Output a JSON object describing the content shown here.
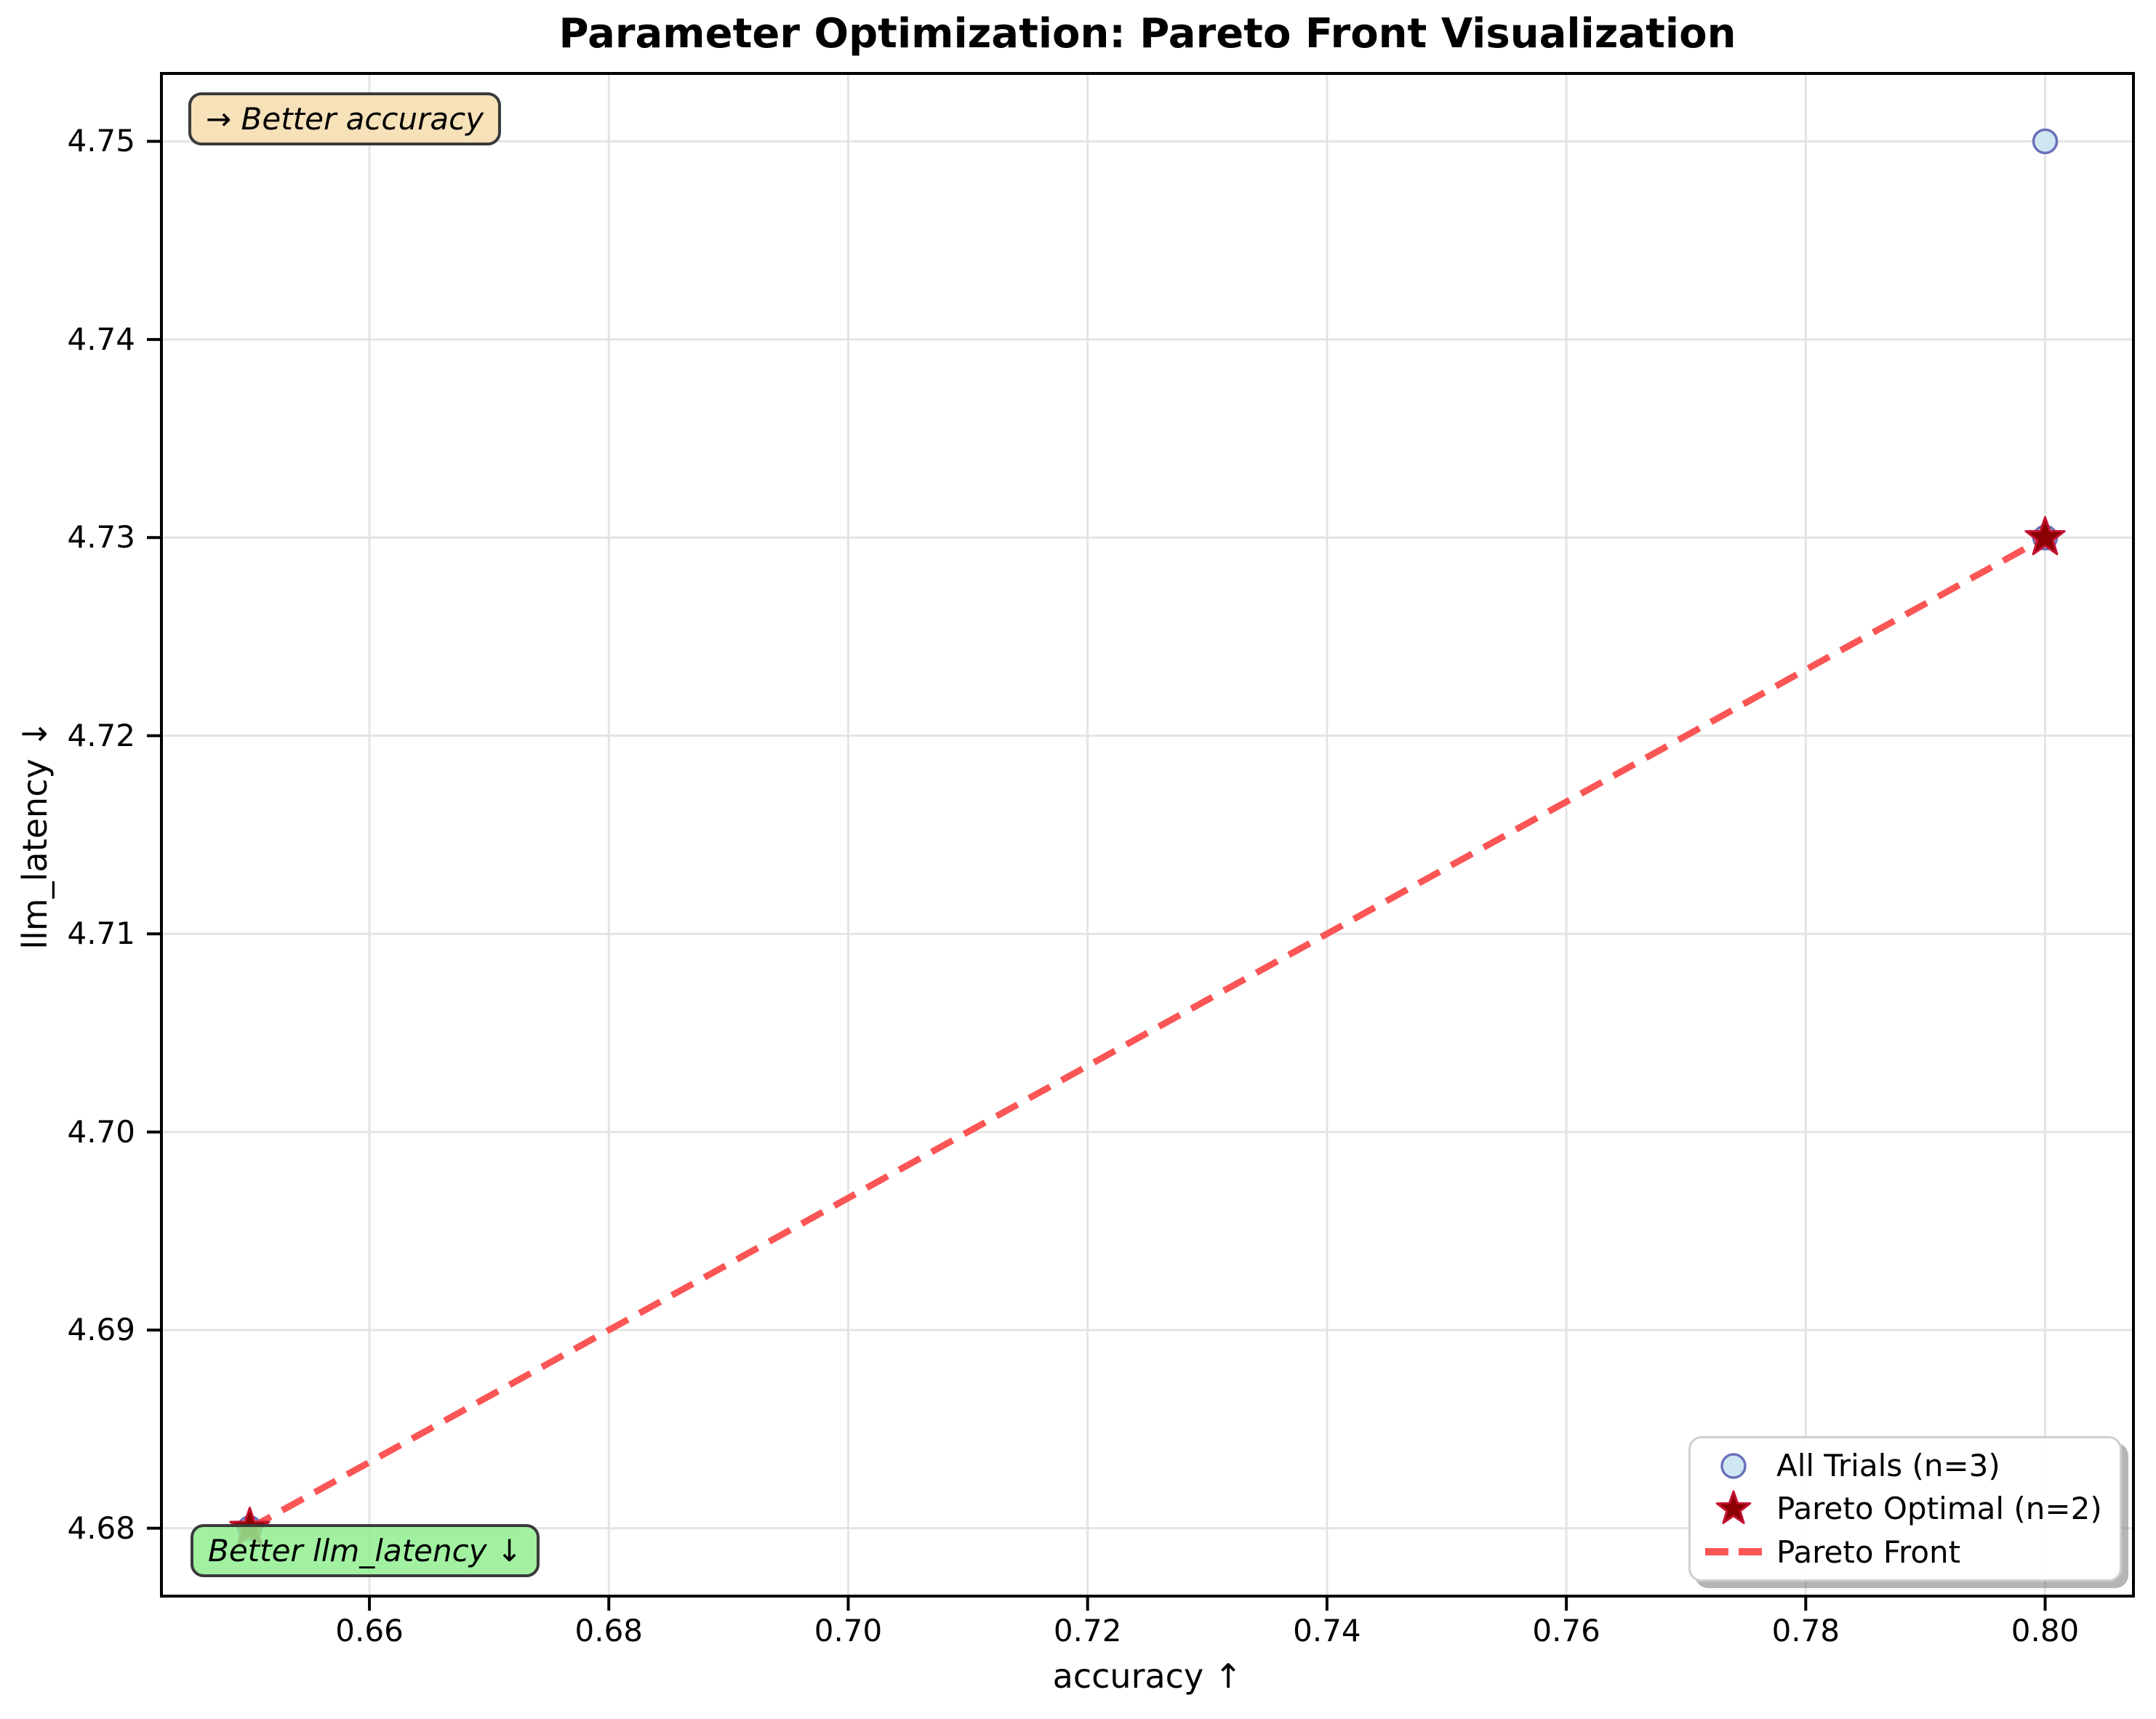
{
  "title": "Parameter Optimization: Pareto Front Visualization",
  "axes": {
    "xlabel": "accuracy ↑",
    "ylabel": "llm_latency ↓"
  },
  "annotations": {
    "better_accuracy": "→ Better accuracy",
    "better_latency": "Better llm_latency ↓"
  },
  "legend": {
    "position": "lower right"
  },
  "colors": {
    "trial_fill": "#cee7f2",
    "trial_edge": "#6a70ba",
    "pareto_fill": "#8b0000",
    "pareto_edge": "#c41230",
    "front_line": "#fb5555",
    "grid": "#e4e4e4",
    "spine": "#000000",
    "annotation_accuracy_bg": "rgba(245,222,179,0.92)",
    "annotation_latency_bg": "rgba(144,238,144,0.85)",
    "legend_bg": "rgba(255,255,255,0.95)"
  },
  "chart_data": {
    "type": "scatter",
    "title": "Parameter Optimization: Pareto Front Visualization",
    "xlabel": "accuracy ↑",
    "ylabel": "llm_latency ↓",
    "xlim": [
      0.6425,
      0.8075
    ],
    "ylim": [
      4.6765,
      4.7535
    ],
    "xticks": [
      0.66,
      0.68,
      0.7,
      0.72,
      0.74,
      0.76,
      0.78,
      0.8
    ],
    "yticks": [
      4.68,
      4.69,
      4.7,
      4.71,
      4.72,
      4.73,
      4.74,
      4.75
    ],
    "grid": true,
    "legend_position": "lower right",
    "series": [
      {
        "name": "All Trials (n=3)",
        "type": "scatter",
        "marker": "circle",
        "points": [
          [
            0.65,
            4.68
          ],
          [
            0.8,
            4.73
          ],
          [
            0.8,
            4.75
          ]
        ]
      },
      {
        "name": "Pareto Optimal (n=2)",
        "type": "scatter",
        "marker": "star",
        "points": [
          [
            0.65,
            4.68
          ],
          [
            0.8,
            4.73
          ]
        ]
      },
      {
        "name": "Pareto Front",
        "type": "line",
        "style": "dashed",
        "points": [
          [
            0.65,
            4.68
          ],
          [
            0.8,
            4.73
          ]
        ]
      }
    ]
  }
}
